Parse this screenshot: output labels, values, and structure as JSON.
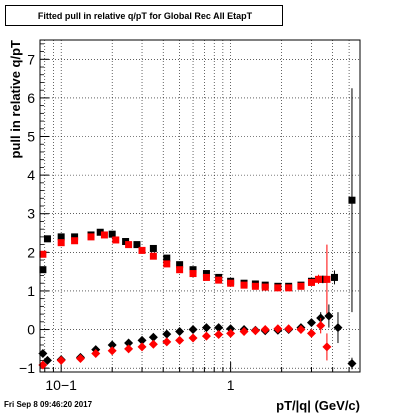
{
  "chart_data": {
    "type": "scatter",
    "title": "Fitted pull in relative q/pT for Global Rec All EtapT",
    "xlabel": "pT/|q| (GeV/c)",
    "ylabel": "pull in relative q/pT",
    "xscale": "log",
    "xlim": [
      0.075,
      5.8
    ],
    "ylim": [
      -1.1,
      7.5
    ],
    "x_ticklabels": [
      {
        "value": 0.1,
        "label": "10−1"
      },
      {
        "value": 1,
        "label": "1"
      }
    ],
    "y_ticklabels": [
      {
        "value": -1,
        "label": "−1"
      },
      {
        "value": 0,
        "label": "0"
      },
      {
        "value": 1,
        "label": "1"
      },
      {
        "value": 2,
        "label": "2"
      },
      {
        "value": 3,
        "label": "3"
      },
      {
        "value": 4,
        "label": "4"
      },
      {
        "value": 5,
        "label": "5"
      },
      {
        "value": 6,
        "label": "6"
      },
      {
        "value": 7,
        "label": "7"
      }
    ],
    "grid": true,
    "series": [
      {
        "color": "#000000",
        "marker": "square",
        "points": [
          [
            0.078,
            1.55,
            0.05
          ],
          [
            0.083,
            2.35,
            0.04
          ],
          [
            0.1,
            2.4,
            0.03
          ],
          [
            0.12,
            2.4,
            0.03
          ],
          [
            0.15,
            2.45,
            0.03
          ],
          [
            0.17,
            2.52,
            0.03
          ],
          [
            0.2,
            2.47,
            0.03
          ],
          [
            0.24,
            2.28,
            0.03
          ],
          [
            0.28,
            2.2,
            0.03
          ],
          [
            0.35,
            2.1,
            0.03
          ],
          [
            0.42,
            1.85,
            0.03
          ],
          [
            0.5,
            1.68,
            0.03
          ],
          [
            0.6,
            1.55,
            0.03
          ],
          [
            0.72,
            1.45,
            0.03
          ],
          [
            0.85,
            1.35,
            0.03
          ],
          [
            1.0,
            1.25,
            0.03
          ],
          [
            1.2,
            1.2,
            0.03
          ],
          [
            1.4,
            1.18,
            0.03
          ],
          [
            1.6,
            1.15,
            0.03
          ],
          [
            1.9,
            1.12,
            0.04
          ],
          [
            2.2,
            1.12,
            0.05
          ],
          [
            2.6,
            1.15,
            0.06
          ],
          [
            3.0,
            1.25,
            0.08
          ],
          [
            3.5,
            1.3,
            0.1
          ],
          [
            4.1,
            1.35,
            0.18
          ],
          [
            5.2,
            3.35,
            2.9
          ]
        ]
      },
      {
        "color": "#ff0000",
        "marker": "square",
        "points": [
          [
            0.078,
            1.95,
            0.05
          ],
          [
            0.1,
            2.25,
            0.04
          ],
          [
            0.12,
            2.3,
            0.03
          ],
          [
            0.15,
            2.4,
            0.03
          ],
          [
            0.18,
            2.45,
            0.03
          ],
          [
            0.21,
            2.32,
            0.03
          ],
          [
            0.25,
            2.2,
            0.03
          ],
          [
            0.3,
            2.05,
            0.03
          ],
          [
            0.35,
            1.9,
            0.03
          ],
          [
            0.42,
            1.7,
            0.03
          ],
          [
            0.5,
            1.55,
            0.03
          ],
          [
            0.6,
            1.45,
            0.03
          ],
          [
            0.72,
            1.35,
            0.03
          ],
          [
            0.85,
            1.28,
            0.03
          ],
          [
            1.0,
            1.2,
            0.03
          ],
          [
            1.2,
            1.15,
            0.03
          ],
          [
            1.4,
            1.12,
            0.03
          ],
          [
            1.6,
            1.1,
            0.03
          ],
          [
            1.9,
            1.08,
            0.04
          ],
          [
            2.2,
            1.08,
            0.05
          ],
          [
            2.6,
            1.12,
            0.06
          ],
          [
            3.0,
            1.22,
            0.08
          ],
          [
            3.3,
            1.3,
            0.12
          ],
          [
            3.7,
            1.3,
            0.9
          ]
        ]
      },
      {
        "color": "#000000",
        "marker": "diamond",
        "points": [
          [
            0.078,
            -0.62,
            0.05
          ],
          [
            0.083,
            -0.8,
            0.04
          ],
          [
            0.1,
            -0.78,
            0.03
          ],
          [
            0.13,
            -0.72,
            0.03
          ],
          [
            0.16,
            -0.52,
            0.03
          ],
          [
            0.2,
            -0.4,
            0.03
          ],
          [
            0.25,
            -0.35,
            0.03
          ],
          [
            0.3,
            -0.28,
            0.03
          ],
          [
            0.35,
            -0.2,
            0.03
          ],
          [
            0.42,
            -0.12,
            0.03
          ],
          [
            0.5,
            -0.05,
            0.03
          ],
          [
            0.6,
            0.0,
            0.03
          ],
          [
            0.72,
            0.05,
            0.03
          ],
          [
            0.85,
            0.05,
            0.03
          ],
          [
            1.0,
            0.02,
            0.03
          ],
          [
            1.2,
            0.0,
            0.03
          ],
          [
            1.4,
            -0.02,
            0.03
          ],
          [
            1.6,
            -0.03,
            0.03
          ],
          [
            1.9,
            -0.02,
            0.04
          ],
          [
            2.2,
            0.0,
            0.05
          ],
          [
            2.6,
            0.05,
            0.06
          ],
          [
            3.0,
            0.18,
            0.1
          ],
          [
            3.4,
            0.3,
            0.15
          ],
          [
            3.8,
            0.35,
            0.3
          ],
          [
            4.3,
            0.05,
            0.4
          ],
          [
            5.2,
            -0.88,
            0.15
          ]
        ]
      },
      {
        "color": "#ff0000",
        "marker": "diamond",
        "points": [
          [
            0.078,
            -0.92,
            0.05
          ],
          [
            0.1,
            -0.8,
            0.04
          ],
          [
            0.13,
            -0.75,
            0.03
          ],
          [
            0.16,
            -0.62,
            0.03
          ],
          [
            0.2,
            -0.55,
            0.03
          ],
          [
            0.25,
            -0.5,
            0.03
          ],
          [
            0.3,
            -0.45,
            0.03
          ],
          [
            0.35,
            -0.38,
            0.03
          ],
          [
            0.42,
            -0.32,
            0.03
          ],
          [
            0.5,
            -0.28,
            0.03
          ],
          [
            0.6,
            -0.22,
            0.03
          ],
          [
            0.72,
            -0.17,
            0.03
          ],
          [
            0.85,
            -0.13,
            0.03
          ],
          [
            1.0,
            -0.1,
            0.03
          ],
          [
            1.2,
            -0.05,
            0.03
          ],
          [
            1.4,
            -0.03,
            0.03
          ],
          [
            1.6,
            0.0,
            0.03
          ],
          [
            1.9,
            0.02,
            0.04
          ],
          [
            2.2,
            0.02,
            0.05
          ],
          [
            2.6,
            0.0,
            0.06
          ],
          [
            3.0,
            -0.1,
            0.1
          ],
          [
            3.4,
            0.1,
            0.2
          ],
          [
            3.7,
            -0.45,
            0.35
          ]
        ]
      }
    ]
  },
  "footer": {
    "timestamp": "Fri Sep  8 09:46:20 2017"
  }
}
